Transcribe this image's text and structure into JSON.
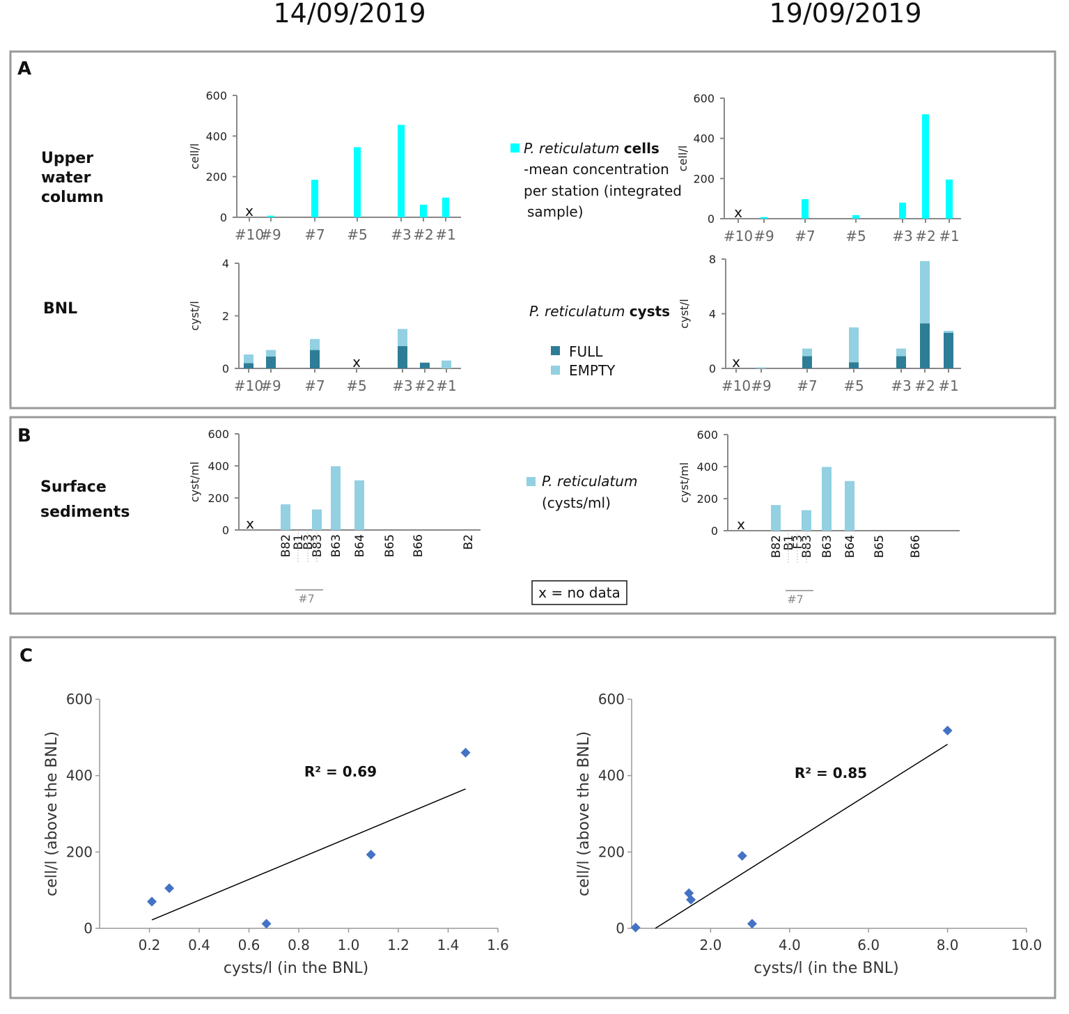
{
  "dates": [
    "14/09/2019",
    "19/09/2019"
  ],
  "panels": {
    "a": "A",
    "b": "B",
    "c": "C"
  },
  "row_labels": {
    "upper": [
      "Upper",
      "water",
      "column"
    ],
    "bnl": "BNL",
    "surface": [
      "Surface",
      "sediments"
    ]
  },
  "legends": {
    "cells": {
      "species": "P. reticulatum",
      "bold": "cells",
      "lines": [
        "-mean concentration",
        "per station (integrated",
        "sample)"
      ]
    },
    "cysts": {
      "species": "P. reticulatum",
      "bold": "cysts",
      "full": "FULL",
      "empty": "EMPTY"
    },
    "sediment": {
      "species": "P. reticulatum",
      "line2": "(cysts/ml)"
    },
    "no_data": "x = no data"
  },
  "colors": {
    "cells": "#00ffff",
    "full": "#2e7d96",
    "empty": "#92d0e2",
    "sediment": "#92d0e2",
    "point": "#4472c4",
    "trend": "#000000"
  },
  "no_data_mark": "x",
  "sediment_subgroup": {
    "members": [
      "B1",
      "B3",
      "B83"
    ],
    "members_right": [
      "B1",
      "F3",
      "B83"
    ],
    "label": "#7"
  },
  "chart_data": [
    {
      "id": "A-cells-left",
      "type": "bar",
      "ylabel": "cell/l",
      "ylim": [
        0,
        600
      ],
      "yticks": [
        0,
        200,
        400,
        600
      ],
      "categories": [
        "#10",
        "#9",
        "#7",
        "#5",
        "#3",
        "#2",
        "#1"
      ],
      "values": [
        null,
        8,
        185,
        345,
        455,
        62,
        97
      ]
    },
    {
      "id": "A-cells-right",
      "type": "bar",
      "ylabel": "cell/l",
      "ylim": [
        0,
        600
      ],
      "yticks": [
        0,
        200,
        400,
        600
      ],
      "categories": [
        "#10",
        "#9",
        "#7",
        "#5",
        "#3",
        "#2",
        "#1"
      ],
      "values": [
        null,
        8,
        97,
        18,
        80,
        520,
        195
      ]
    },
    {
      "id": "A-cysts-left",
      "type": "bar",
      "stacked": true,
      "ylabel": "cyst/l",
      "ylim": [
        0,
        4
      ],
      "yticks": [
        0,
        2,
        4
      ],
      "categories": [
        "#10",
        "#9",
        "#7",
        "#5",
        "#3",
        "#2",
        "#1"
      ],
      "series": [
        {
          "name": "FULL",
          "values": [
            0.2,
            0.45,
            0.7,
            null,
            0.85,
            0.22,
            0
          ]
        },
        {
          "name": "EMPTY",
          "values": [
            0.33,
            0.25,
            0.42,
            null,
            0.65,
            0,
            0.3
          ]
        }
      ]
    },
    {
      "id": "A-cysts-right",
      "type": "bar",
      "stacked": true,
      "ylabel": "cyst/l",
      "ylim": [
        0,
        8
      ],
      "yticks": [
        0,
        4,
        8
      ],
      "categories": [
        "#10",
        "#9",
        "#7",
        "#5",
        "#3",
        "#2",
        "#1"
      ],
      "series": [
        {
          "name": "FULL",
          "values": [
            null,
            0,
            0.9,
            0.45,
            0.9,
            3.3,
            2.6
          ]
        },
        {
          "name": "EMPTY",
          "values": [
            null,
            0.08,
            0.55,
            2.55,
            0.55,
            4.55,
            0.15
          ]
        }
      ]
    },
    {
      "id": "B-sediments-left",
      "type": "bar",
      "ylabel": "cyst/ml",
      "ylim": [
        0,
        600
      ],
      "yticks": [
        0,
        200,
        400,
        600
      ],
      "categories": [
        "",
        "B82",
        "B1",
        "B3",
        "B83",
        "B63",
        "B64",
        "B65",
        "B66",
        "B2"
      ],
      "values": [
        null,
        160,
        0,
        0,
        128,
        398,
        310,
        0,
        0,
        0
      ]
    },
    {
      "id": "B-sediments-right",
      "type": "bar",
      "ylabel": "cyst/ml",
      "ylim": [
        0,
        600
      ],
      "yticks": [
        0,
        200,
        400,
        600
      ],
      "categories": [
        "",
        "B82",
        "B1",
        "F3",
        "B83",
        "B63",
        "B64",
        "B65",
        "B66"
      ],
      "values": [
        null,
        160,
        0,
        0,
        128,
        398,
        310,
        0,
        0
      ]
    },
    {
      "id": "C-left",
      "type": "scatter",
      "xlabel": "cysts/l (in the BNL)",
      "ylabel": "cell/l (above the BNL)",
      "xlim": [
        0,
        1.6
      ],
      "ylim": [
        0,
        600
      ],
      "xticks": [
        "0.2",
        "0.4",
        "0.6",
        "0.8",
        "1.0",
        "1.2",
        "1.4",
        "1.6"
      ],
      "yticks": [
        "0",
        "200",
        "400",
        "600"
      ],
      "x": [
        0.21,
        0.28,
        0.67,
        1.09,
        1.47
      ],
      "y": [
        70,
        105,
        12,
        193,
        460
      ],
      "trendline": [
        [
          0.21,
          22
        ],
        [
          1.47,
          365
        ]
      ],
      "r2": "R² = 0.69"
    },
    {
      "id": "C-right",
      "type": "scatter",
      "xlabel": "cysts/l (in the BNL)",
      "ylabel": "cell/l (above the BNL)",
      "xlim": [
        0,
        10
      ],
      "ylim": [
        0,
        600
      ],
      "xticks": [
        "2.0",
        "4.0",
        "6.0",
        "8.0",
        "10.0"
      ],
      "yticks": [
        "0",
        "200",
        "400",
        "600"
      ],
      "x": [
        0.1,
        1.45,
        1.5,
        2.8,
        3.05,
        8.0
      ],
      "y": [
        2,
        92,
        75,
        190,
        12,
        518
      ],
      "trendline": [
        [
          0.6,
          0
        ],
        [
          8.0,
          482
        ]
      ],
      "r2": "R² = 0.85"
    }
  ]
}
